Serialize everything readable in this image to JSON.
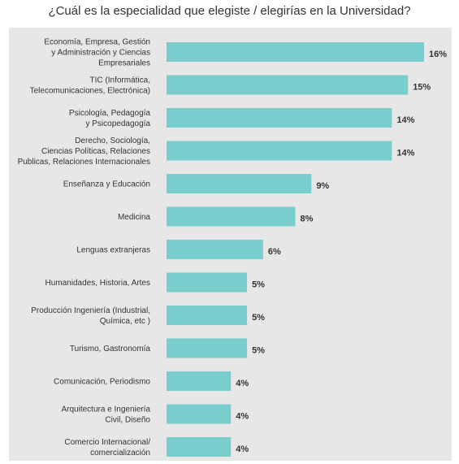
{
  "chart_data": {
    "type": "bar",
    "orientation": "horizontal",
    "title": "¿Cuál es la especialidad que elegiste / elegirías en la Universidad?",
    "xlabel": "",
    "ylabel": "",
    "categories": [
      [
        "Economía, Empresa, Gestión",
        "y Administración y Ciencias",
        "Empresariales"
      ],
      [
        "TIC (Informática,",
        "Telecomunicaciones, Electrónica)"
      ],
      [
        "Psicología, Pedagogía",
        "y Psicopedagogía"
      ],
      [
        "Derecho, Sociología,",
        "Ciencias Políticas, Relaciones",
        "Publicas, Relaciones Internacionales"
      ],
      [
        "Enseñanza y Educación"
      ],
      [
        "Medicina"
      ],
      [
        "Lenguas extranjeras"
      ],
      [
        "Humanidades, Historia, Artes"
      ],
      [
        "Producción Ingeniería (Industrial,",
        "Química, etc )"
      ],
      [
        "Turismo, Gastronomía"
      ],
      [
        "Comunicación, Periodismo"
      ],
      [
        "Arquitectura e Ingeniería",
        "Civil, Diseño"
      ],
      [
        "Comercio Internacional/",
        "comercialización"
      ]
    ],
    "values": [
      16,
      15,
      14,
      14,
      9,
      8,
      6,
      5,
      5,
      5,
      4,
      4,
      4
    ],
    "value_labels": [
      "16%",
      "15%",
      "14%",
      "14%",
      "9%",
      "8%",
      "6%",
      "5%",
      "5%",
      "5%",
      "4%",
      "4%",
      "4%"
    ],
    "unit": "%",
    "grid": false,
    "colors": {
      "bar": "#79cdcd",
      "panel": "#e7e7e7",
      "text": "#333333"
    }
  }
}
